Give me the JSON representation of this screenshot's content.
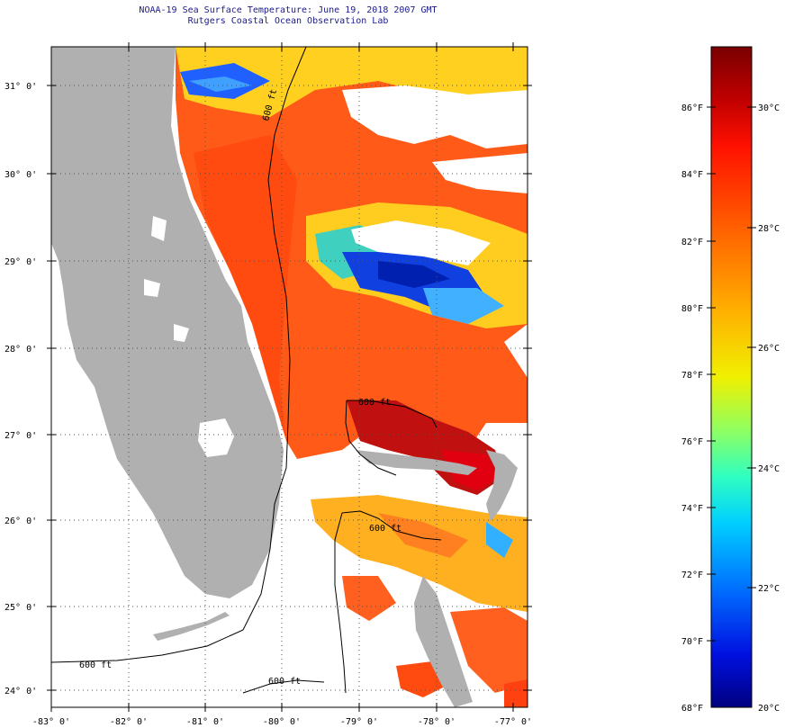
{
  "title": {
    "line1": "NOAA-19 Sea Surface Temperature:  June 19, 2018 2007 GMT",
    "line2": "Rutgers Coastal Ocean Observation Lab"
  },
  "map": {
    "lat_labels": [
      "31° 0'",
      "30° 0'",
      "29° 0'",
      "28° 0'",
      "27° 0'",
      "26° 0'",
      "25° 0'",
      "24° 0'"
    ],
    "lon_labels": [
      "-83° 0'",
      "-82° 0'",
      "-81° 0'",
      "-80° 0'",
      "-79° 0'",
      "-78° 0'",
      "-77° 0'"
    ],
    "isobath_labels": [
      "600 ft",
      "600 ft",
      "600 ft",
      "600 ft",
      "600 ft"
    ],
    "colors": {
      "land": "#b0b0b0",
      "cloud": "#ffffff",
      "gridline": "#555555"
    }
  },
  "colorbar": {
    "fahrenheit_labels": [
      "86°F",
      "84°F",
      "82°F",
      "80°F",
      "78°F",
      "76°F",
      "74°F",
      "72°F",
      "70°F",
      "68°F"
    ],
    "celsius_labels": [
      "30°C",
      "28°C",
      "26°C",
      "24°C",
      "22°C",
      "20°C"
    ],
    "range_f": [
      68,
      88
    ],
    "range_c": [
      20,
      31
    ]
  }
}
